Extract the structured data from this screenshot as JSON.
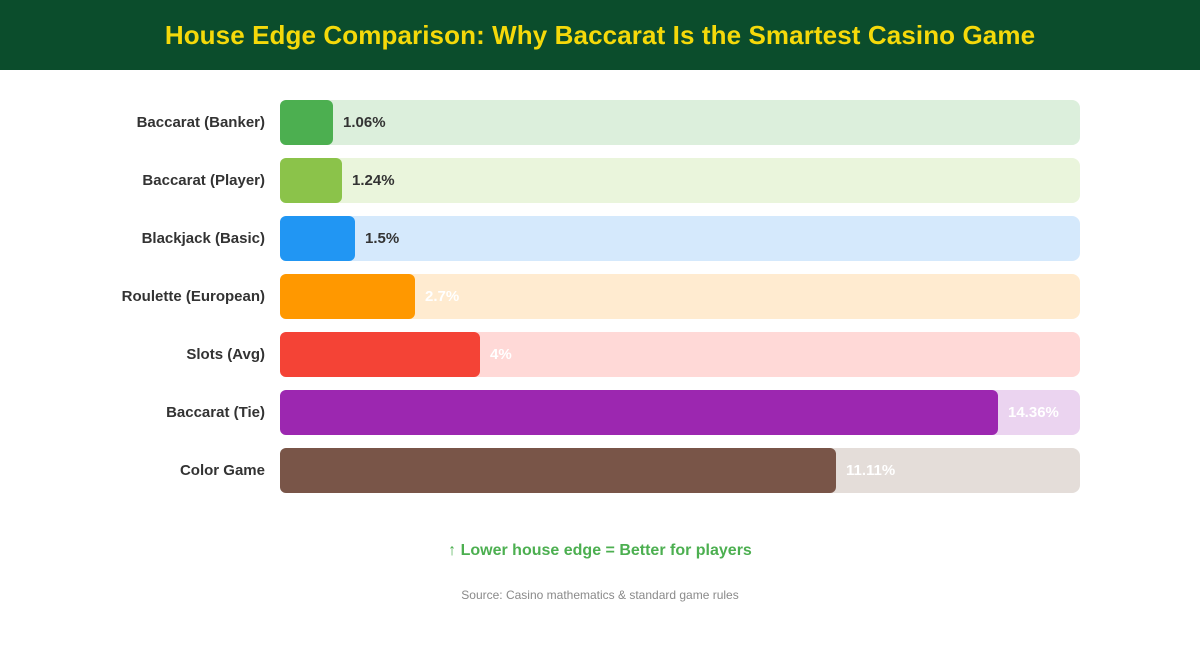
{
  "colors": {
    "header_bg": "#0b4d2c",
    "title": "#f5d90a",
    "note": "#4caf50",
    "dark_text": "#333333",
    "light_text": "#ffffff"
  },
  "footer": {
    "note": "↑ Lower house edge = Better for players",
    "source": "Source: Casino mathematics & standard game rules"
  },
  "chart_data": {
    "type": "bar",
    "orientation": "horizontal",
    "title": "House Edge Comparison: Why Baccarat Is the Smartest Casino Game",
    "xlim": [
      0,
      16
    ],
    "grid": false,
    "bars": [
      {
        "category": "Baccarat (Banker)",
        "value": 1.06,
        "label": "1.06%",
        "color": "#4caf50",
        "track_color": "#dcefdc"
      },
      {
        "category": "Baccarat (Player)",
        "value": 1.24,
        "label": "1.24%",
        "color": "#8bc34a",
        "track_color": "#eaf5dc"
      },
      {
        "category": "Blackjack (Basic)",
        "value": 1.5,
        "label": "1.5%",
        "color": "#2196f3",
        "track_color": "#d5e9fc"
      },
      {
        "category": "Roulette (European)",
        "value": 2.7,
        "label": "2.7%",
        "color": "#ff9800",
        "track_color": "#ffebd0"
      },
      {
        "category": "Slots (Avg)",
        "value": 4,
        "label": "4%",
        "color": "#f44336",
        "track_color": "#ffd9d7"
      },
      {
        "category": "Baccarat (Tie)",
        "value": 14.36,
        "label": "14.36%",
        "color": "#9c27b0",
        "track_color": "#ebd4f0"
      },
      {
        "category": "Color Game",
        "value": 11.11,
        "label": "11.11%",
        "color": "#795548",
        "track_color": "#e4ddd9"
      }
    ]
  }
}
